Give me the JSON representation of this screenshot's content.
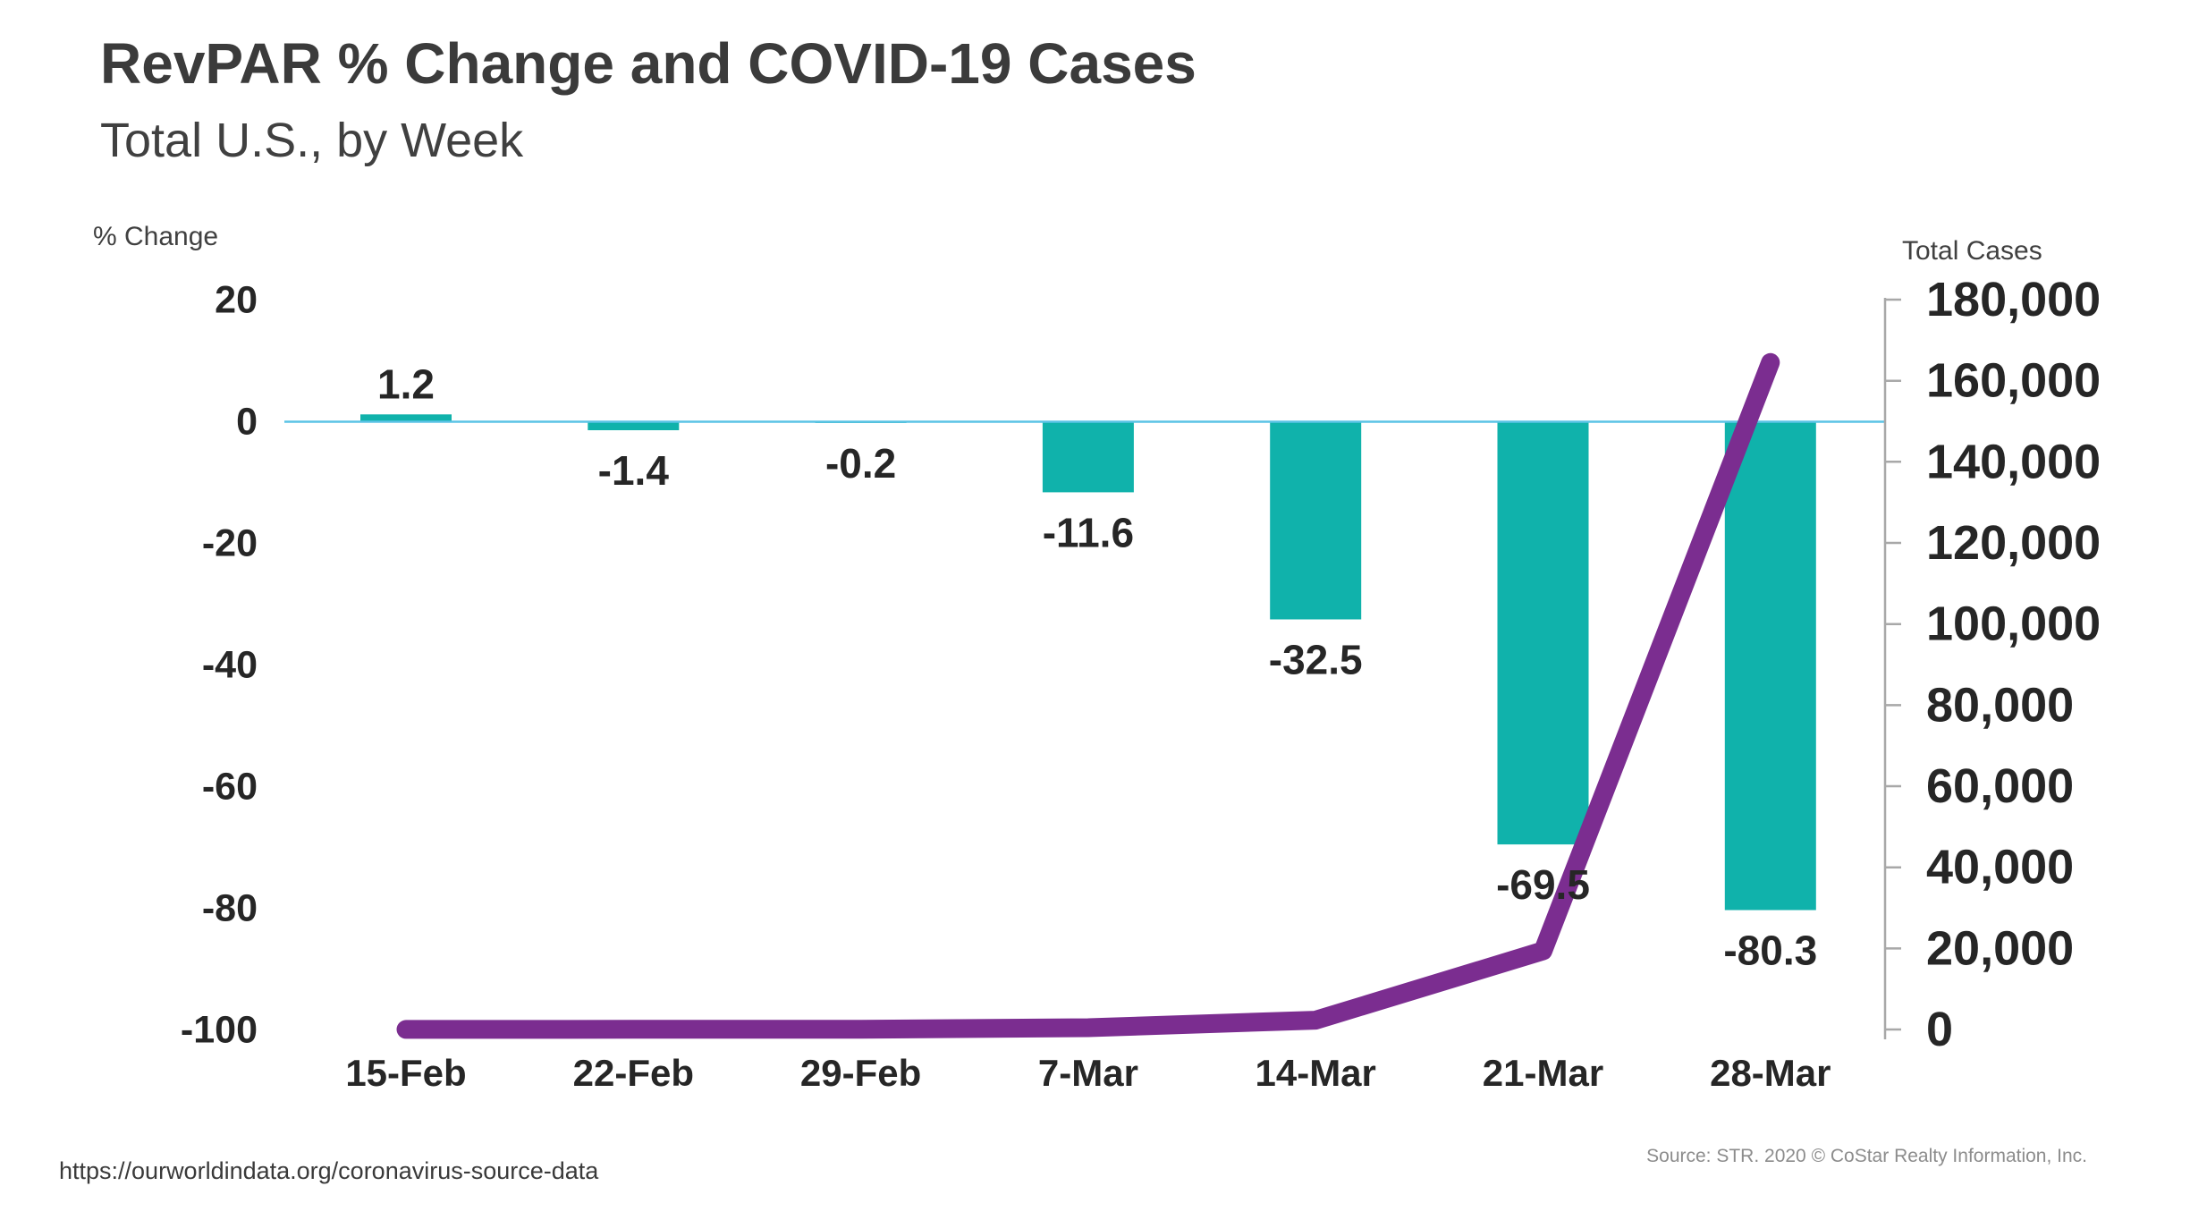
{
  "footer": {
    "link": "https://ourworldindata.org/coronavirus-source-data",
    "source": "Source: STR. 2020 © CoStar Realty Information, Inc."
  },
  "chart_data": {
    "type": "combo",
    "title": "RevPAR % Change and COVID-19 Cases",
    "subtitle": "Total U.S., by Week",
    "categories": [
      "15-Feb",
      "22-Feb",
      "29-Feb",
      "7-Mar",
      "14-Mar",
      "21-Mar",
      "28-Mar"
    ],
    "series": [
      {
        "name": "RevPAR % Change",
        "type": "bar",
        "axis": "left",
        "color": "#10b2ab",
        "values": [
          1.2,
          -1.4,
          -0.2,
          -11.6,
          -32.5,
          -69.5,
          -80.3
        ],
        "data_labels": [
          "1.2",
          "-1.4",
          "-0.2",
          "-11.6",
          "-32.5",
          "-69.5",
          "-80.3"
        ]
      },
      {
        "name": "COVID-19 Total Cases",
        "type": "line",
        "axis": "right",
        "color": "#7b2d90",
        "values": [
          15,
          35,
          75,
          450,
          2300,
          19400,
          164500
        ]
      }
    ],
    "left_axis": {
      "label": "% Change",
      "min": -100,
      "max": 20,
      "tick_step": 20,
      "ticks": [
        20,
        0,
        -20,
        -40,
        -60,
        -80,
        -100
      ]
    },
    "right_axis": {
      "label": "Total Cases",
      "min": 0,
      "max": 180000,
      "tick_step": 20000,
      "tick_labels": [
        "180,000",
        "160,000",
        "140,000",
        "120,000",
        "100,000",
        "80,000",
        "60,000",
        "40,000",
        "20,000",
        "0"
      ]
    },
    "grid": false,
    "legend": "none",
    "zero_line_color": "#5bc3e6",
    "axis_line_color": "#a8a8a8",
    "label_color": "#262626"
  }
}
